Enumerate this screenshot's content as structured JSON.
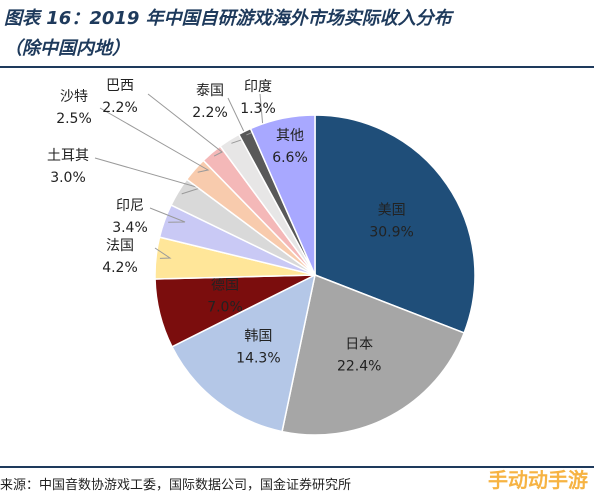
{
  "title": "图表 16：2019 年中国自研游戏海外市场实际收入分布",
  "subtitle": "（除中国内地）",
  "source": "来源：中国音数协游戏工委，国际数据公司，国金证券研究所",
  "watermark": "手动动手游",
  "chart_data": {
    "type": "pie",
    "slices": [
      {
        "label": "美国",
        "value": 30.9,
        "display": "30.9%",
        "color": "#1f4e79",
        "text_color": "#ffffff"
      },
      {
        "label": "日本",
        "value": 22.4,
        "display": "22.4%",
        "color": "#a6a6a6",
        "text_color": "#ffffff"
      },
      {
        "label": "韩国",
        "value": 14.3,
        "display": "14.3%",
        "color": "#b4c7e7",
        "text_color": "#222222"
      },
      {
        "label": "德国",
        "value": 7.0,
        "display": "7.0%",
        "color": "#7b0d0d",
        "text_color": "#ffffff"
      },
      {
        "label": "法国",
        "value": 4.2,
        "display": "4.2%",
        "color": "#ffe699",
        "text_color": "#222222"
      },
      {
        "label": "印尼",
        "value": 3.4,
        "display": "3.4%",
        "color": "#c9c9f5",
        "text_color": "#222222"
      },
      {
        "label": "土耳其",
        "value": 3.0,
        "display": "3.0%",
        "color": "#d9d9d9",
        "text_color": "#222222"
      },
      {
        "label": "沙特",
        "value": 2.5,
        "display": "2.5%",
        "color": "#f8cbad",
        "text_color": "#222222"
      },
      {
        "label": "巴西",
        "value": 2.2,
        "display": "2.2%",
        "color": "#f4b8b8",
        "text_color": "#222222"
      },
      {
        "label": "泰国",
        "value": 2.2,
        "display": "2.2%",
        "color": "#e7e6e6",
        "text_color": "#222222"
      },
      {
        "label": "印度",
        "value": 1.3,
        "display": "1.3%",
        "color": "#595959",
        "text_color": "#222222"
      },
      {
        "label": "其他",
        "value": 6.6,
        "display": "6.6%",
        "color": "#a8a8ff",
        "text_color": "#222222"
      }
    ]
  }
}
